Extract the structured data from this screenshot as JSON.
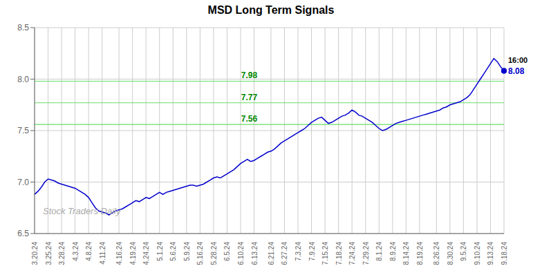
{
  "chart_data": {
    "type": "line",
    "title": "MSD Long Term Signals",
    "categories": [
      "3.20.24",
      null,
      null,
      null,
      "3.25.24",
      null,
      null,
      null,
      "3.28.24",
      null,
      null,
      null,
      "4.3.24",
      null,
      null,
      null,
      "4.8.24",
      null,
      null,
      null,
      "4.11.24",
      null,
      null,
      null,
      null,
      "4.16.24",
      null,
      null,
      null,
      "4.19.24",
      null,
      null,
      null,
      "4.24.24",
      null,
      null,
      null,
      "5.1.24",
      null,
      null,
      null,
      "5.6.24",
      null,
      null,
      null,
      "5.9.24",
      null,
      null,
      null,
      "5.16.24",
      null,
      null,
      null,
      "5.28.24",
      null,
      null,
      null,
      "6.5.24",
      null,
      null,
      null,
      "6.10.24",
      null,
      null,
      null,
      "6.13.24",
      null,
      null,
      null,
      null,
      "6.21.24",
      null,
      null,
      null,
      "6.27.24",
      null,
      null,
      null,
      "7.3.24",
      null,
      null,
      null,
      "7.9.24",
      null,
      null,
      null,
      "7.15.24",
      null,
      null,
      null,
      "7.18.24",
      null,
      null,
      null,
      "7.24.24",
      null,
      null,
      null,
      "7.29.24",
      null,
      null,
      null,
      "8.1.24",
      null,
      null,
      null,
      "8.9.24",
      null,
      null,
      null,
      "8.14.24",
      null,
      null,
      null,
      "8.19.24",
      null,
      null,
      null,
      null,
      "8.26.24",
      null,
      null,
      null,
      "8.30.24",
      null,
      null,
      null,
      "9.5.24",
      null,
      null,
      null,
      "9.10.24",
      null,
      null,
      null,
      "9.13.24",
      null,
      null,
      null,
      "9.18.24"
    ],
    "series": [
      {
        "name": "MSD",
        "color": "#0000cc",
        "values": [
          6.88,
          6.91,
          6.95,
          7.0,
          7.03,
          7.02,
          7.01,
          6.99,
          6.98,
          6.97,
          6.96,
          6.95,
          6.94,
          6.92,
          6.9,
          6.88,
          6.85,
          6.8,
          6.75,
          6.72,
          6.71,
          6.7,
          6.68,
          6.7,
          6.72,
          6.73,
          6.74,
          6.76,
          6.78,
          6.8,
          6.82,
          6.81,
          6.83,
          6.85,
          6.84,
          6.86,
          6.88,
          6.9,
          6.88,
          6.9,
          6.91,
          6.92,
          6.93,
          6.94,
          6.95,
          6.96,
          6.97,
          6.97,
          6.96,
          6.97,
          6.98,
          7.0,
          7.02,
          7.04,
          7.05,
          7.04,
          7.06,
          7.08,
          7.1,
          7.12,
          7.15,
          7.18,
          7.2,
          7.22,
          7.2,
          7.21,
          7.23,
          7.25,
          7.27,
          7.29,
          7.3,
          7.32,
          7.35,
          7.38,
          7.4,
          7.42,
          7.44,
          7.46,
          7.48,
          7.5,
          7.52,
          7.55,
          7.58,
          7.6,
          7.62,
          7.63,
          7.6,
          7.57,
          7.58,
          7.6,
          7.62,
          7.64,
          7.65,
          7.67,
          7.7,
          7.68,
          7.65,
          7.64,
          7.62,
          7.6,
          7.58,
          7.55,
          7.52,
          7.5,
          7.51,
          7.53,
          7.55,
          7.57,
          7.58,
          7.59,
          7.6,
          7.61,
          7.62,
          7.63,
          7.64,
          7.65,
          7.66,
          7.67,
          7.68,
          7.69,
          7.7,
          7.72,
          7.73,
          7.75,
          7.76,
          7.77,
          7.78,
          7.8,
          7.82,
          7.85,
          7.9,
          7.95,
          8.0,
          8.05,
          8.1,
          8.15,
          8.2,
          8.17,
          8.12,
          8.08
        ]
      }
    ],
    "ylim": [
      6.5,
      8.5
    ],
    "yticks": [
      6.5,
      {
        "value": 7.0,
        "label": "7.0"
      },
      7.5,
      {
        "value": 8.0,
        "label": "8.0"
      },
      8.5
    ],
    "grid": true,
    "reference_lines": [
      {
        "value": 7.98,
        "label": "7.98",
        "color": "#66dd66"
      },
      {
        "value": 7.77,
        "label": "7.77",
        "color": "#66dd66"
      },
      {
        "value": 7.56,
        "label": "7.56",
        "color": "#66dd66"
      }
    ],
    "annotations": [
      {
        "text": "Stock Traders Daily",
        "color": "#aaaaaa"
      },
      {
        "text": "16:00",
        "x": 139,
        "y": 8.08,
        "color": "#000000"
      },
      {
        "text": "8.08",
        "x": 139,
        "y": 8.08,
        "color": "#0000cc"
      }
    ]
  }
}
